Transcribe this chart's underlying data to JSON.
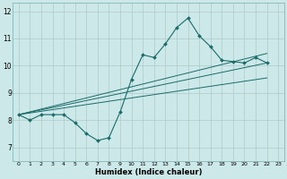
{
  "title": "",
  "xlabel": "Humidex (Indice chaleur)",
  "xlim": [
    -0.5,
    23.5
  ],
  "ylim": [
    6.5,
    12.3
  ],
  "xticks": [
    0,
    1,
    2,
    3,
    4,
    5,
    6,
    7,
    8,
    9,
    10,
    11,
    12,
    13,
    14,
    15,
    16,
    17,
    18,
    19,
    20,
    21,
    22,
    23
  ],
  "yticks": [
    7,
    8,
    9,
    10,
    11,
    12
  ],
  "bg_color": "#cce8e8",
  "grid_color": "#b0c8c8",
  "line_color": "#1a6b6b",
  "series_main": {
    "x": [
      0,
      1,
      2,
      3,
      4,
      5,
      6,
      7,
      8,
      9,
      10,
      11,
      12,
      13,
      14,
      15,
      16,
      17,
      18,
      19,
      20,
      21,
      22
    ],
    "y": [
      8.2,
      8.0,
      8.2,
      8.2,
      8.2,
      7.9,
      7.5,
      7.25,
      7.35,
      8.3,
      9.5,
      10.4,
      10.3,
      10.8,
      11.4,
      11.75,
      11.1,
      10.7,
      10.2,
      10.15,
      10.1,
      10.3,
      10.1
    ]
  },
  "series_lines": [
    {
      "x": [
        0,
        22
      ],
      "y": [
        8.2,
        9.55
      ]
    },
    {
      "x": [
        0,
        22
      ],
      "y": [
        8.2,
        10.1
      ]
    },
    {
      "x": [
        0,
        22
      ],
      "y": [
        8.2,
        10.45
      ]
    }
  ]
}
